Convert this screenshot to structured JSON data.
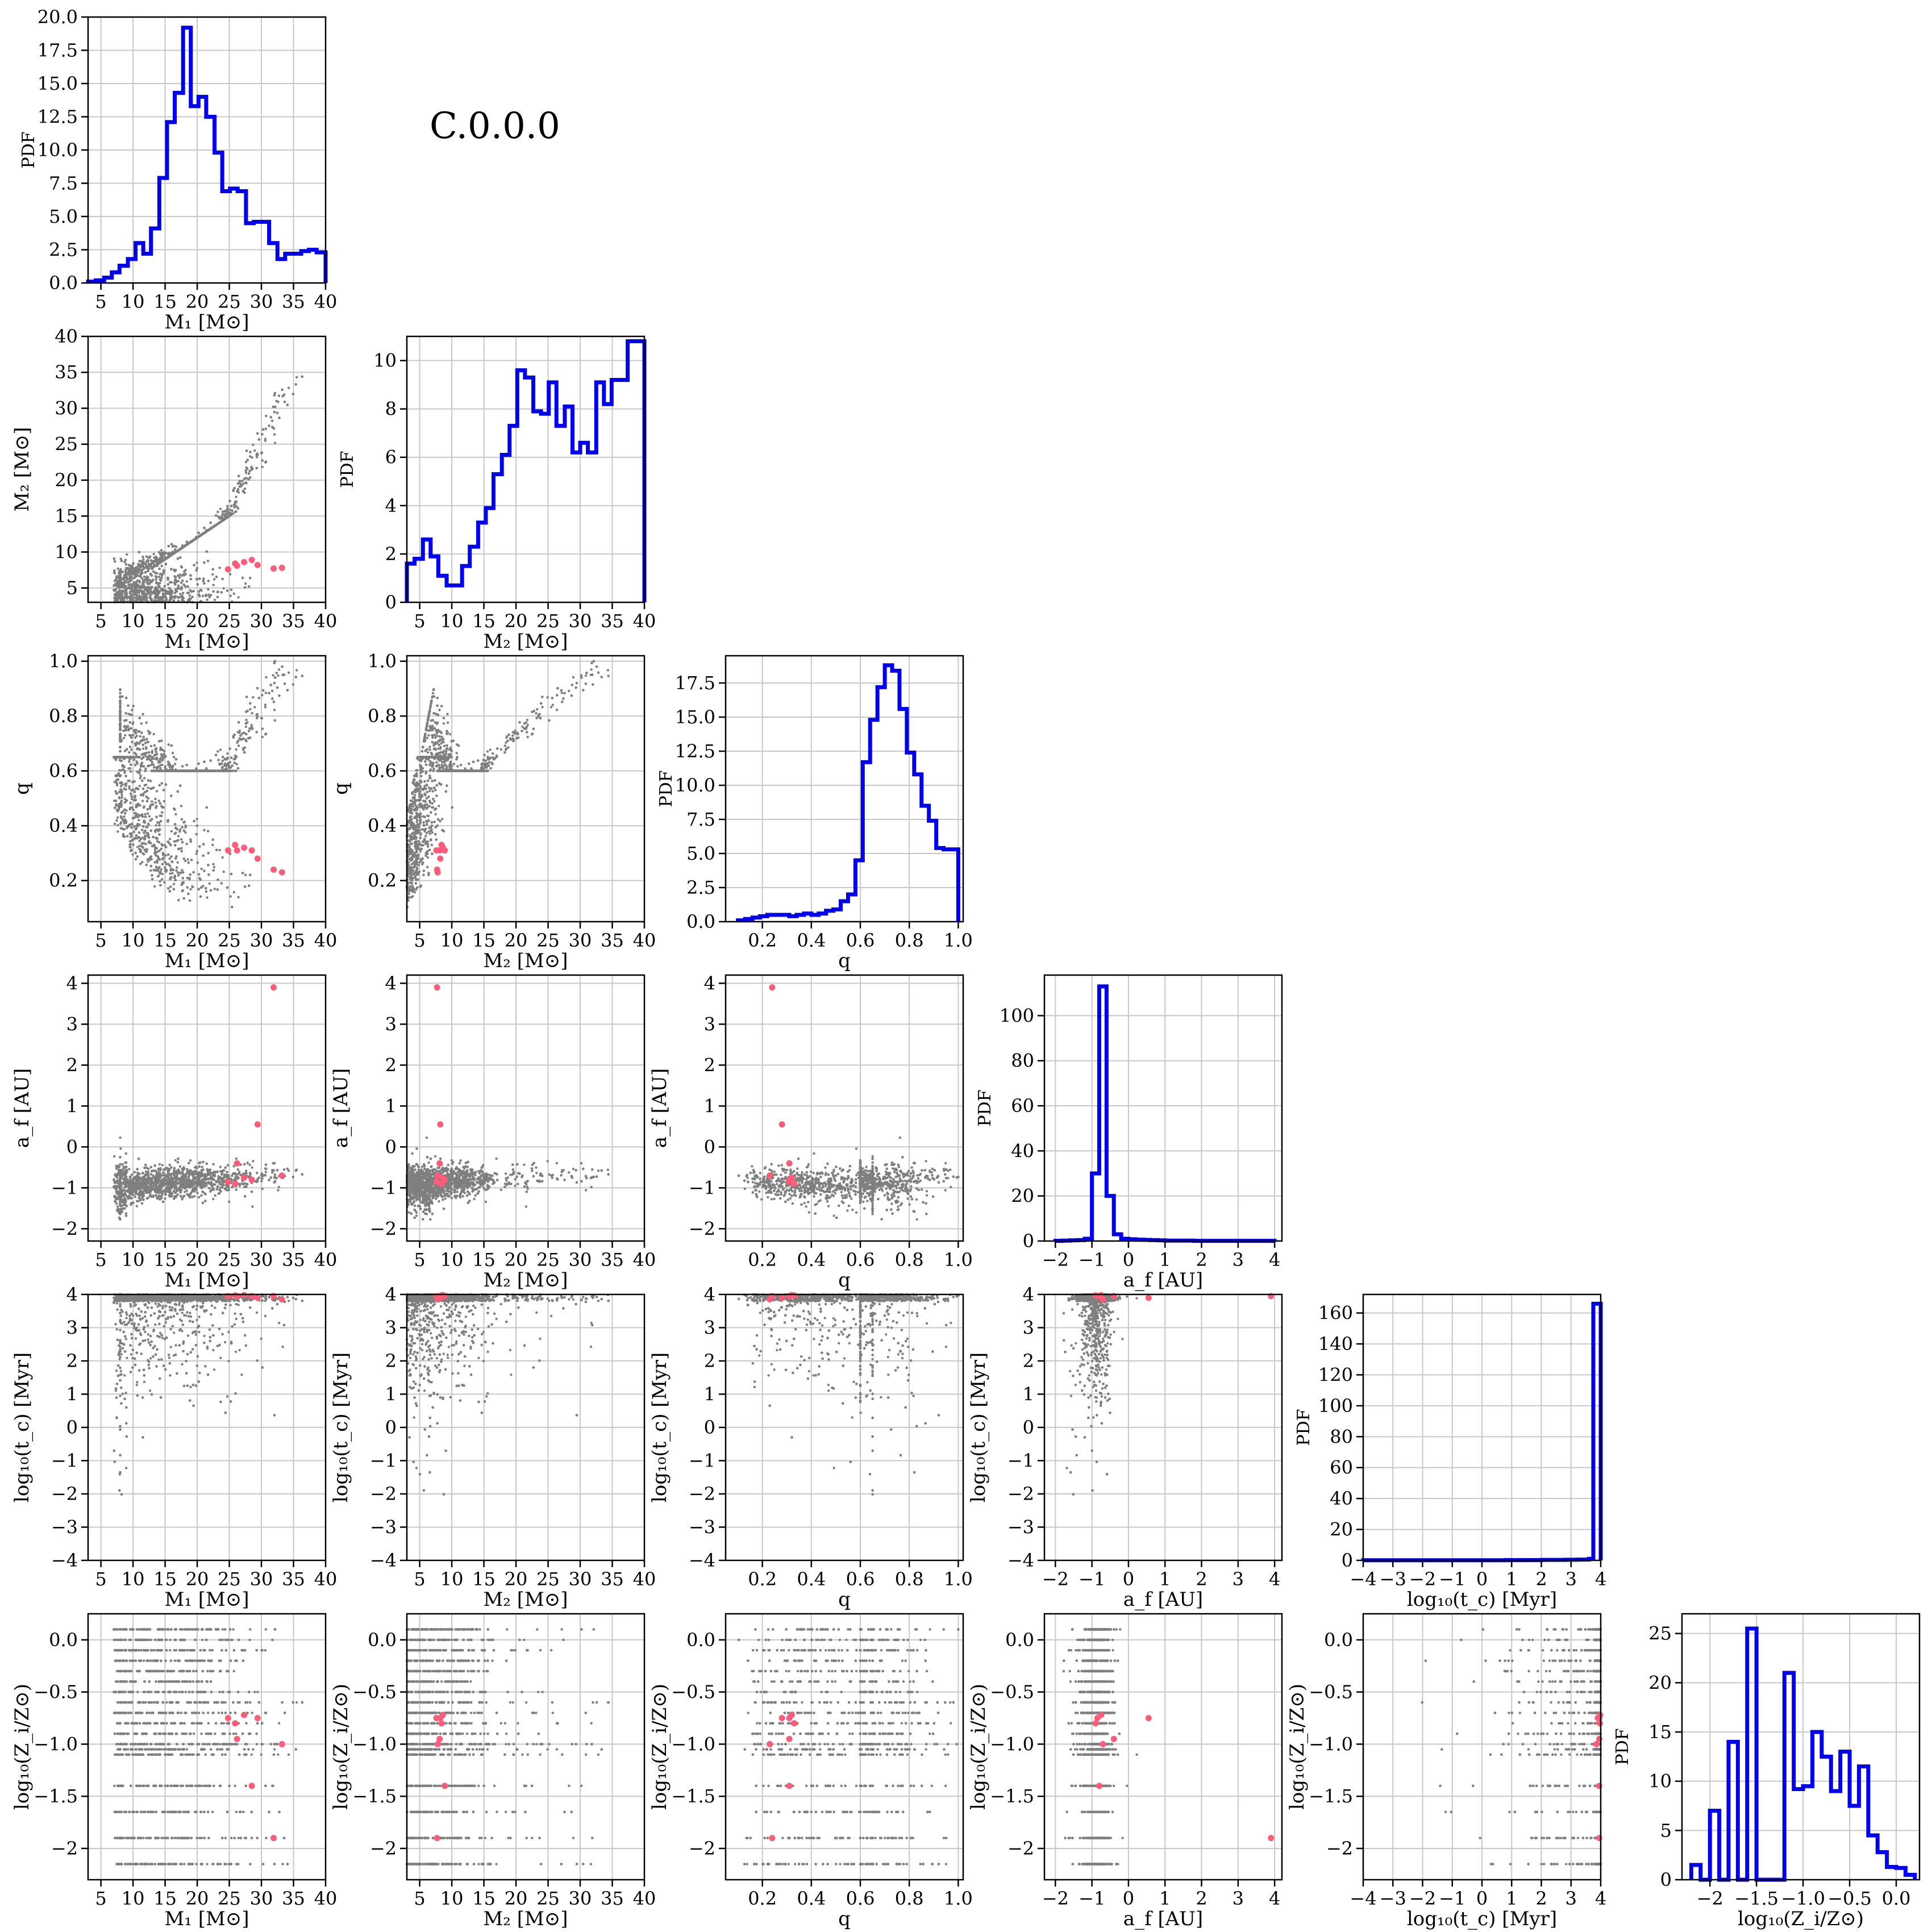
{
  "page": {
    "title": "C.0.0.0"
  },
  "colors": {
    "histogram": "#0000ee",
    "scatter": "#7f7f7f",
    "highlight": "#ff5c7a",
    "grid": "#c8c8c8"
  },
  "variables": {
    "M1": {
      "label": "M₁ [M⊙]",
      "range": [
        3,
        40
      ],
      "ticks": [
        5,
        10,
        15,
        20,
        25,
        30,
        35,
        40
      ]
    },
    "M2": {
      "label": "M₂ [M⊙]",
      "range": [
        3,
        40
      ],
      "ticks": [
        5,
        10,
        15,
        20,
        25,
        30,
        35,
        40
      ]
    },
    "q": {
      "label": "q",
      "range": [
        0.05,
        1.02
      ],
      "ticks": [
        0.2,
        0.4,
        0.6,
        0.8,
        1.0
      ]
    },
    "af": {
      "label": "a_f [AU]",
      "range": [
        -2.3,
        4.2
      ],
      "ticks": [
        -2,
        -1,
        0,
        1,
        2,
        3,
        4
      ]
    },
    "tc": {
      "label": "log₁₀(t_c) [Myr]",
      "range": [
        -4,
        4
      ],
      "ticks": [
        -4,
        -3,
        -2,
        -1,
        0,
        1,
        2,
        3,
        4
      ]
    },
    "Z": {
      "label": "log₁₀(Z_i/Z⊙)",
      "range": [
        -2.3,
        0.25
      ],
      "ticks": [
        -2.0,
        -1.5,
        -1.0,
        -0.5,
        0.0
      ]
    }
  },
  "chart_data": {
    "type": "corner",
    "title": "C.0.0.0",
    "order": [
      "M1",
      "M2",
      "q",
      "af",
      "tc",
      "Z"
    ],
    "pdf_label": "PDF",
    "histograms": {
      "M1": {
        "ylim": [
          0,
          20
        ],
        "yticks": [
          0.0,
          2.5,
          5.0,
          7.5,
          10.0,
          12.5,
          15.0,
          17.5,
          20.0
        ],
        "edges": [
          3,
          4.2,
          5.5,
          6.7,
          7.9,
          9.2,
          10.4,
          11.6,
          12.8,
          14.1,
          15.3,
          16.5,
          17.8,
          19.0,
          20.2,
          21.4,
          22.7,
          23.9,
          25.1,
          26.3,
          27.6,
          28.8,
          30.0,
          31.2,
          32.5,
          33.7,
          34.9,
          36.2,
          37.4,
          38.6,
          40
        ],
        "values": [
          0.1,
          0.2,
          0.4,
          0.8,
          1.3,
          1.8,
          3.0,
          2.2,
          4.1,
          7.9,
          12.1,
          14.3,
          19.2,
          13.3,
          14.0,
          12.5,
          9.8,
          6.9,
          7.1,
          6.9,
          4.5,
          4.6,
          4.6,
          3.0,
          1.8,
          2.2,
          2.2,
          2.4,
          2.5,
          2.3
        ]
      },
      "M2": {
        "ylim": [
          0,
          11
        ],
        "yticks": [
          0,
          2,
          4,
          6,
          8,
          10
        ],
        "edges": [
          3,
          4.2,
          5.5,
          6.7,
          7.9,
          9.2,
          10.4,
          11.6,
          12.8,
          14.1,
          15.3,
          16.5,
          17.8,
          19.0,
          20.2,
          21.4,
          22.7,
          23.9,
          25.1,
          26.3,
          27.6,
          28.8,
          30.0,
          31.2,
          32.5,
          33.7,
          34.9,
          36.2,
          37.4,
          38.6,
          40
        ],
        "values": [
          1.6,
          1.8,
          2.6,
          1.9,
          1.1,
          0.7,
          0.7,
          1.5,
          2.3,
          3.3,
          3.9,
          5.3,
          6.1,
          7.3,
          9.6,
          9.3,
          7.9,
          7.8,
          9.1,
          7.3,
          8.1,
          6.2,
          6.6,
          6.2,
          9.1,
          8.2,
          9.2,
          9.2,
          10.8,
          10.8
        ]
      },
      "q": {
        "ylim": [
          0,
          19.5
        ],
        "yticks": [
          0.0,
          2.5,
          5.0,
          7.5,
          10.0,
          12.5,
          15.0,
          17.5
        ],
        "edges": [
          0.1,
          0.13,
          0.16,
          0.19,
          0.22,
          0.25,
          0.28,
          0.31,
          0.34,
          0.37,
          0.4,
          0.43,
          0.46,
          0.49,
          0.52,
          0.55,
          0.58,
          0.61,
          0.64,
          0.67,
          0.7,
          0.73,
          0.76,
          0.79,
          0.82,
          0.85,
          0.88,
          0.91,
          0.94,
          0.97,
          1.0
        ],
        "values": [
          0.1,
          0.2,
          0.3,
          0.4,
          0.5,
          0.5,
          0.5,
          0.4,
          0.5,
          0.6,
          0.5,
          0.6,
          0.8,
          0.9,
          1.5,
          2.0,
          4.5,
          11.7,
          14.8,
          17.2,
          18.8,
          18.4,
          15.6,
          12.4,
          10.8,
          8.5,
          7.4,
          5.4,
          5.3,
          5.3
        ]
      },
      "af": {
        "ylim": [
          0,
          118
        ],
        "yticks": [
          0,
          20,
          40,
          60,
          80,
          100
        ],
        "edges": [
          -2.0,
          -1.8,
          -1.6,
          -1.4,
          -1.2,
          -1.0,
          -0.8,
          -0.6,
          -0.4,
          -0.2,
          0.0,
          0.2,
          0.4,
          0.6,
          0.8,
          1.0,
          1.4,
          1.8,
          2.2,
          2.6,
          3.0,
          3.4,
          3.8,
          4.0
        ],
        "values": [
          0.1,
          0.2,
          0.3,
          0.4,
          1.0,
          30,
          113,
          20,
          3,
          1,
          0.8,
          0.6,
          0.5,
          0.4,
          0.3,
          0.2,
          0.2,
          0.1,
          0.1,
          0.1,
          0.1,
          0.1,
          0.1
        ]
      },
      "tc": {
        "ylim": [
          0,
          172
        ],
        "yticks": [
          0,
          20,
          40,
          60,
          80,
          100,
          120,
          140,
          160
        ],
        "edges": [
          -4,
          -3.6,
          -3.2,
          -2.8,
          -2.4,
          -2.0,
          -1.6,
          -1.2,
          -0.8,
          -0.4,
          0.0,
          0.4,
          0.8,
          1.2,
          1.6,
          2.0,
          2.4,
          2.8,
          3.2,
          3.6,
          3.75,
          4.0
        ],
        "values": [
          0.1,
          0.1,
          0.1,
          0.1,
          0.1,
          0.1,
          0.1,
          0.1,
          0.1,
          0.1,
          0.1,
          0.1,
          0.2,
          0.2,
          0.2,
          0.3,
          0.3,
          0.4,
          0.5,
          1.0,
          166
        ]
      },
      "Z": {
        "ylim": [
          0,
          27
        ],
        "yticks": [
          0,
          5,
          10,
          15,
          20,
          25
        ],
        "edges": [
          -2.2,
          -2.1,
          -2.0,
          -1.9,
          -1.8,
          -1.7,
          -1.6,
          -1.5,
          -1.4,
          -1.3,
          -1.2,
          -1.1,
          -1.0,
          -0.9,
          -0.8,
          -0.7,
          -0.6,
          -0.5,
          -0.4,
          -0.3,
          -0.2,
          -0.1,
          0.0,
          0.1,
          0.2
        ],
        "values": [
          1.5,
          0,
          7,
          0,
          14,
          0,
          25.5,
          0,
          0,
          0,
          21,
          9.2,
          9.5,
          15,
          12.5,
          9,
          13,
          7.5,
          11.5,
          4.5,
          2.8,
          1.3,
          1.2,
          0.5
        ]
      }
    },
    "scatter_structure": {
      "description_free": true,
      "af_line": {
        "slope_vs_M1": 0.011,
        "intercept": -1.05
      },
      "Z_levels": [
        0.1,
        0.0,
        -0.1,
        -0.2,
        -0.3,
        -0.4,
        -0.5,
        -0.6,
        -0.7,
        -0.8,
        -0.9,
        -1.0,
        -1.05,
        -1.1,
        -1.4,
        -1.65,
        -1.9,
        -2.15
      ]
    },
    "highlight_points": [
      {
        "M1": 24.8,
        "M2": 7.6,
        "q": 0.31,
        "af": -0.85,
        "tc": 3.95,
        "Z": -0.75
      },
      {
        "M1": 26.2,
        "M2": 8.1,
        "q": 0.31,
        "af": -0.4,
        "tc": 3.95,
        "Z": -0.95
      },
      {
        "M1": 27.3,
        "M2": 8.6,
        "q": 0.32,
        "af": -0.75,
        "tc": 3.98,
        "Z": -0.72
      },
      {
        "M1": 28.5,
        "M2": 8.9,
        "q": 0.31,
        "af": -0.8,
        "tc": 3.95,
        "Z": -1.4
      },
      {
        "M1": 29.4,
        "M2": 8.2,
        "q": 0.28,
        "af": 0.55,
        "tc": 3.9,
        "Z": -0.75
      },
      {
        "M1": 31.9,
        "M2": 7.7,
        "q": 0.24,
        "af": 3.9,
        "tc": 3.95,
        "Z": -1.9
      },
      {
        "M1": 33.2,
        "M2": 7.8,
        "q": 0.23,
        "af": -0.7,
        "tc": 3.85,
        "Z": -1.0
      },
      {
        "M1": 25.9,
        "M2": 8.4,
        "q": 0.33,
        "af": -0.9,
        "tc": 3.97,
        "Z": -0.8
      }
    ]
  }
}
